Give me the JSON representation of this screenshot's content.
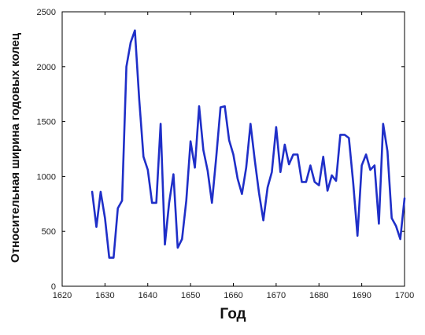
{
  "chart_data": {
    "type": "line",
    "xlabel": "Год",
    "ylabel": "Относительная ширина годовых колец",
    "xlim": [
      1620,
      1700
    ],
    "ylim": [
      0,
      2500
    ],
    "xticks": [
      1620,
      1630,
      1640,
      1650,
      1660,
      1670,
      1680,
      1690,
      1700
    ],
    "yticks": [
      0,
      500,
      1000,
      1500,
      2000,
      2500
    ],
    "grid": false,
    "line_color": "#1f2fc8",
    "series": [
      {
        "x": [
          1627,
          1628,
          1629,
          1630,
          1631,
          1632,
          1633,
          1634,
          1635,
          1636,
          1637,
          1638,
          1639,
          1640,
          1641,
          1642,
          1643,
          1644,
          1645,
          1646,
          1647,
          1648,
          1649,
          1650,
          1651,
          1652,
          1653,
          1654,
          1655,
          1656,
          1657,
          1658,
          1659,
          1660,
          1661,
          1662,
          1663,
          1664,
          1665,
          1666,
          1667,
          1668,
          1669,
          1670,
          1671,
          1672,
          1673,
          1674,
          1675,
          1676,
          1677,
          1678,
          1679,
          1680,
          1681,
          1682,
          1683,
          1684,
          1685,
          1686,
          1687,
          1688,
          1689,
          1690,
          1691,
          1692,
          1693,
          1694,
          1695,
          1696,
          1697,
          1698,
          1699,
          1700
        ],
        "y": [
          860,
          540,
          860,
          620,
          260,
          260,
          710,
          780,
          2000,
          2220,
          2330,
          1700,
          1180,
          1060,
          760,
          760,
          1480,
          380,
          760,
          1020,
          350,
          430,
          780,
          1320,
          1080,
          1640,
          1240,
          1050,
          760,
          1180,
          1630,
          1640,
          1330,
          1200,
          980,
          840,
          1080,
          1480,
          1150,
          850,
          600,
          900,
          1040,
          1450,
          1040,
          1290,
          1110,
          1200,
          1200,
          950,
          950,
          1100,
          950,
          920,
          1180,
          870,
          1010,
          960,
          1380,
          1380,
          1350,
          940,
          460,
          1100,
          1200,
          1060,
          1100,
          570,
          1480,
          1230,
          620,
          550,
          430,
          800
        ]
      }
    ]
  }
}
